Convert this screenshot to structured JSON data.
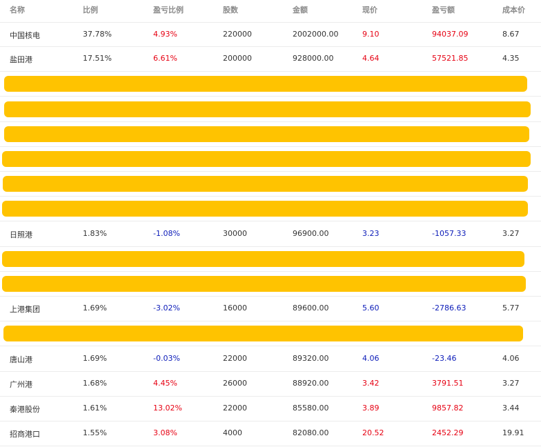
{
  "columns": [
    "名称",
    "比例",
    "盈亏比例",
    "股数",
    "金额",
    "现价",
    "盈亏额",
    "成本价"
  ],
  "colors": {
    "positive": "#e60012",
    "negative": "#0a1ab8",
    "redaction": "#ffc300"
  },
  "rows": [
    {
      "name": "中国核电",
      "ratio": "37.78%",
      "pl_ratio": "4.93%",
      "shares": "220000",
      "amount": "2002000.00",
      "price": "9.10",
      "pl": "94037.09",
      "cost": "8.67",
      "trend": "pos"
    },
    {
      "name": "盐田港",
      "ratio": "17.51%",
      "pl_ratio": "6.61%",
      "shares": "200000",
      "amount": "928000.00",
      "price": "4.64",
      "pl": "57521.85",
      "cost": "4.35",
      "trend": "pos"
    },
    {
      "redacted": true
    },
    {
      "redacted": true
    },
    {
      "redacted": true
    },
    {
      "redacted": true
    },
    {
      "redacted": true
    },
    {
      "redacted": true
    },
    {
      "name": "日照港",
      "ratio": "1.83%",
      "pl_ratio": "-1.08%",
      "shares": "30000",
      "amount": "96900.00",
      "price": "3.23",
      "pl": "-1057.33",
      "cost": "3.27",
      "trend": "neg"
    },
    {
      "redacted": true
    },
    {
      "redacted": true
    },
    {
      "name": "上港集团",
      "ratio": "1.69%",
      "pl_ratio": "-3.02%",
      "shares": "16000",
      "amount": "89600.00",
      "price": "5.60",
      "pl": "-2786.63",
      "cost": "5.77",
      "trend": "neg"
    },
    {
      "redacted": true
    },
    {
      "name": "唐山港",
      "ratio": "1.69%",
      "pl_ratio": "-0.03%",
      "shares": "22000",
      "amount": "89320.00",
      "price": "4.06",
      "pl": "-23.46",
      "cost": "4.06",
      "trend": "neg"
    },
    {
      "name": "广州港",
      "ratio": "1.68%",
      "pl_ratio": "4.45%",
      "shares": "26000",
      "amount": "88920.00",
      "price": "3.42",
      "pl": "3791.51",
      "cost": "3.27",
      "trend": "pos"
    },
    {
      "name": "秦港股份",
      "ratio": "1.61%",
      "pl_ratio": "13.02%",
      "shares": "22000",
      "amount": "85580.00",
      "price": "3.89",
      "pl": "9857.82",
      "cost": "3.44",
      "trend": "pos"
    },
    {
      "name": "招商港口",
      "ratio": "1.55%",
      "pl_ratio": "3.08%",
      "shares": "4000",
      "amount": "82080.00",
      "price": "20.52",
      "pl": "2452.29",
      "cost": "19.91",
      "trend": "pos"
    }
  ]
}
